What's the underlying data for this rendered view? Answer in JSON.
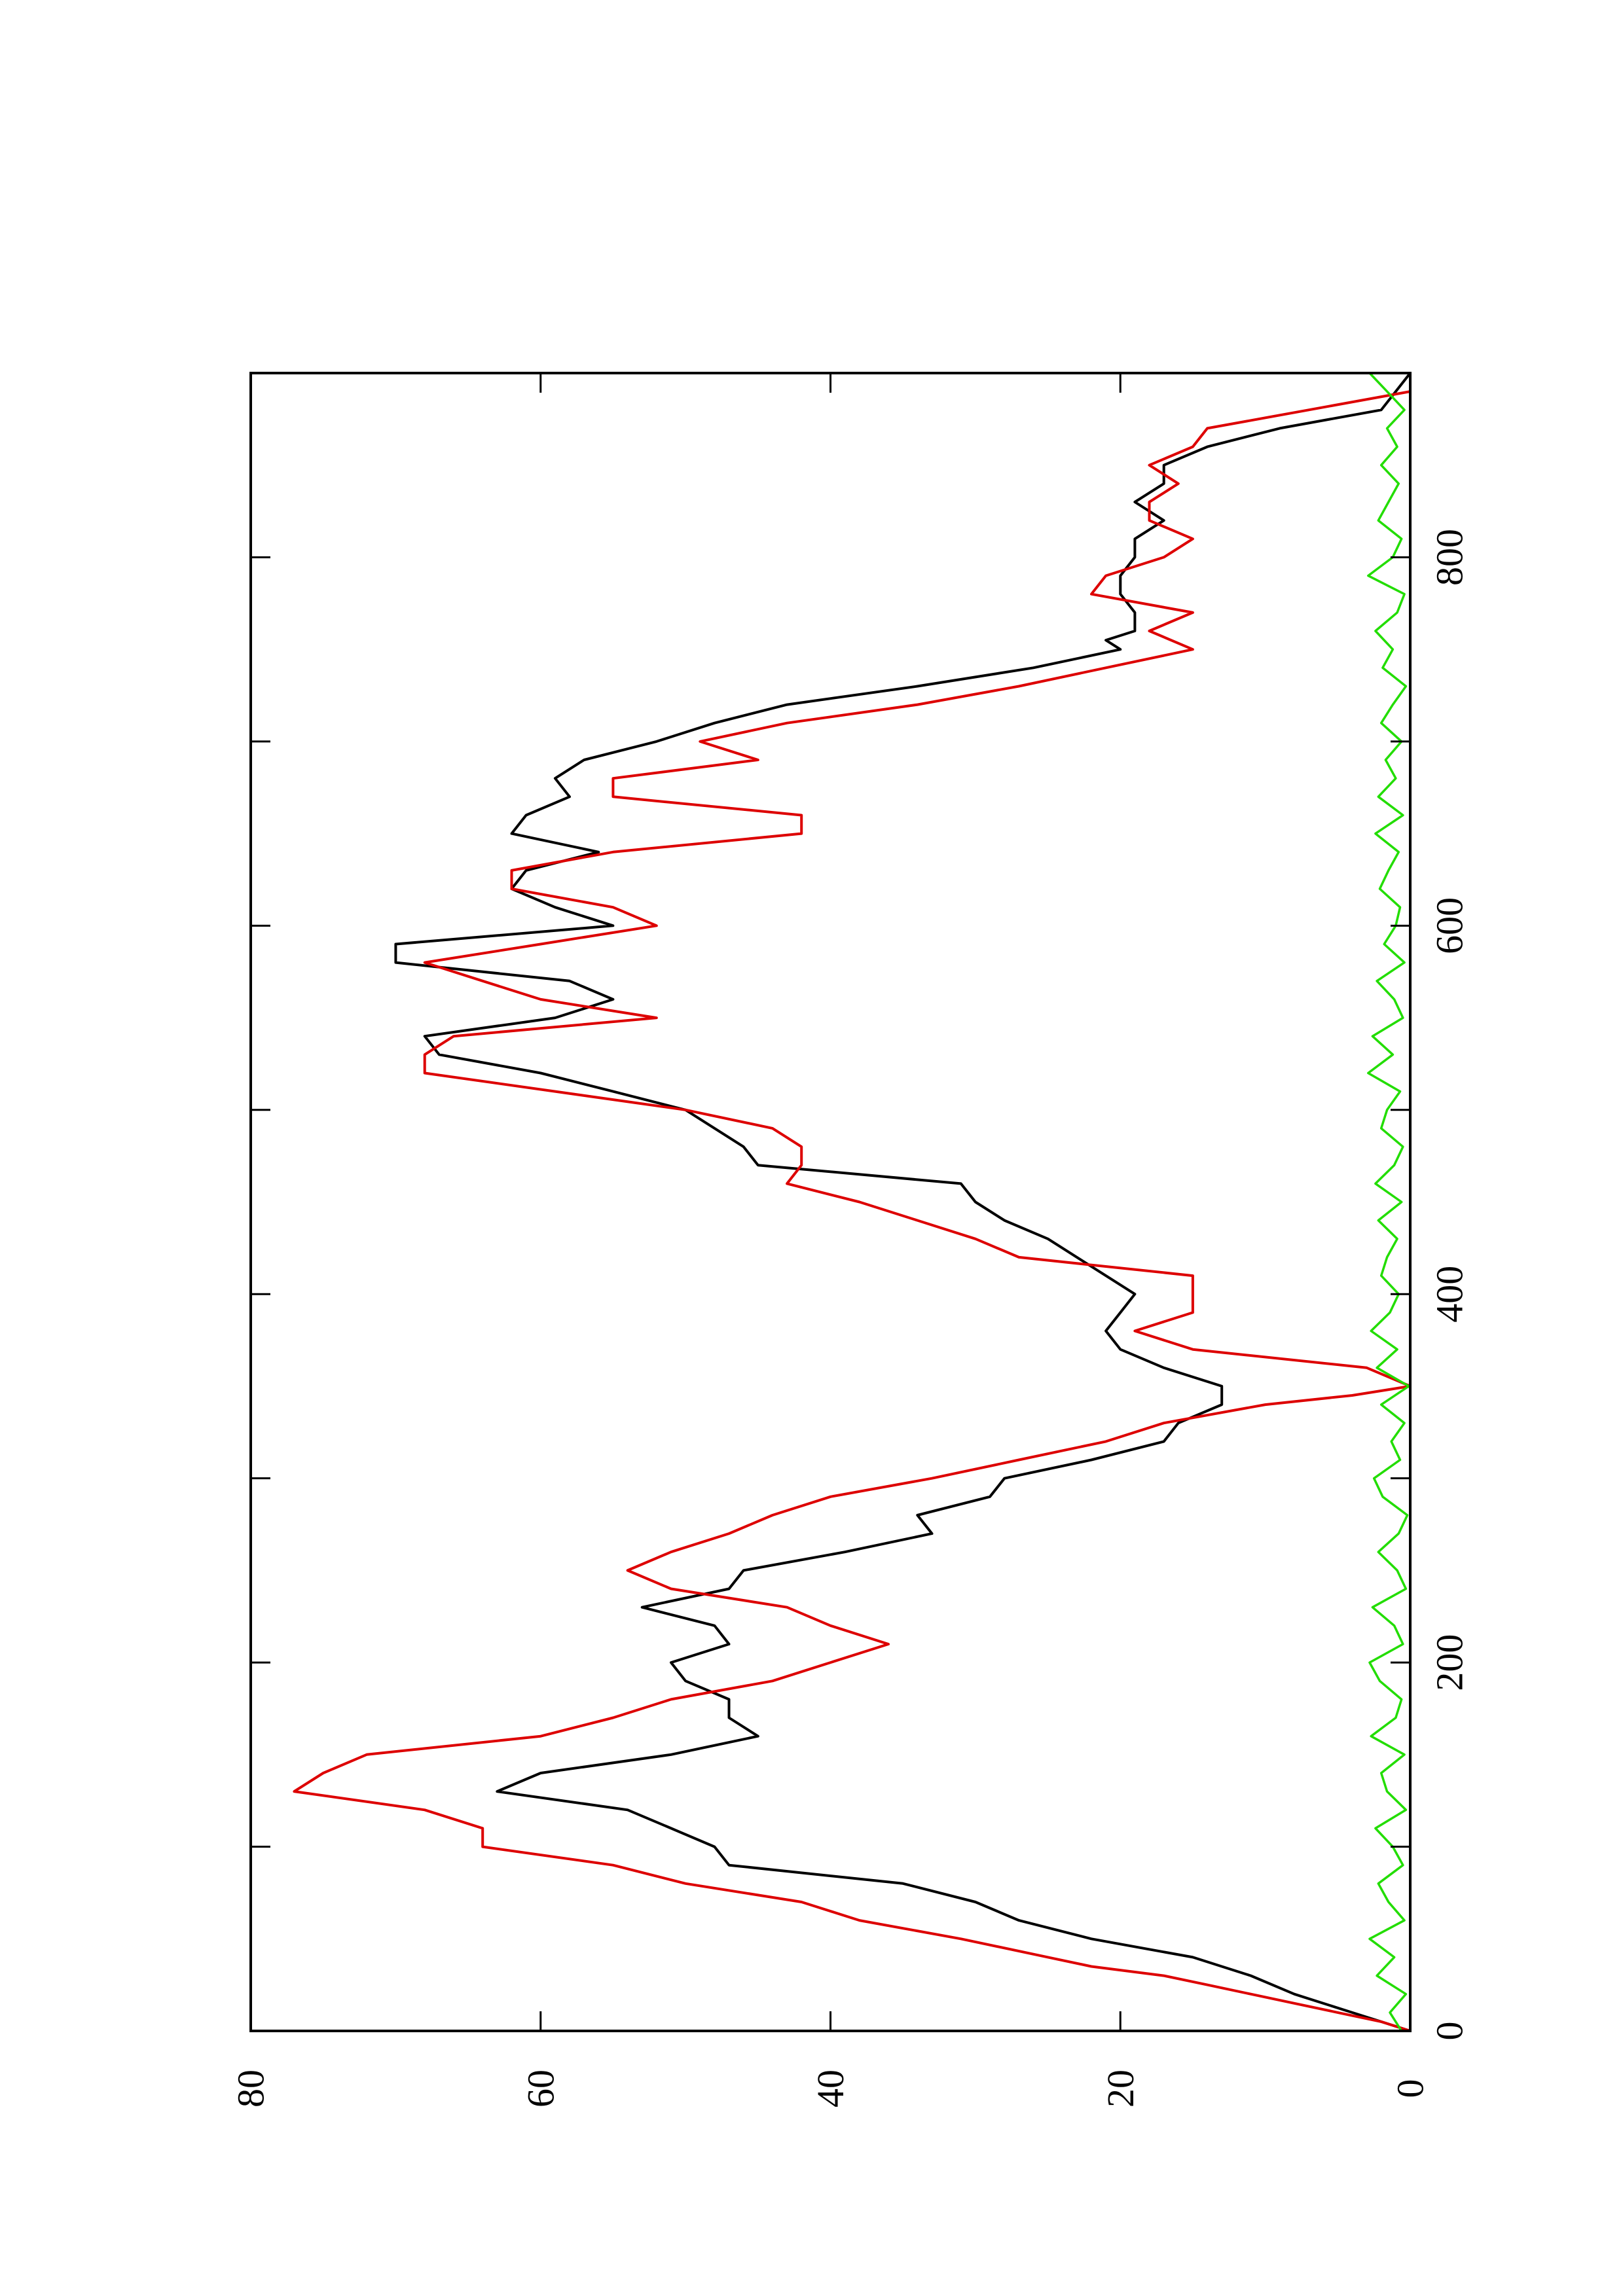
{
  "chart_data": {
    "type": "line",
    "title": "",
    "xlabel": "",
    "ylabel": "",
    "orientation": "rotated 90 degrees counter-clockwise (page in landscape)",
    "xlim": [
      0,
      900
    ],
    "ylim": [
      0,
      80
    ],
    "x_ticks": [
      "0",
      "200",
      "400",
      "600",
      "800"
    ],
    "y_ticks": [
      "0",
      "20",
      "40",
      "60",
      "80"
    ],
    "x_minor_ticks": [
      100,
      300,
      500,
      700
    ],
    "grid": false,
    "legend": "none",
    "series": [
      {
        "color": "#000000",
        "style": "solid",
        "x": [
          0,
          5,
          10,
          20,
          30,
          40,
          50,
          60,
          70,
          80,
          90,
          100,
          110,
          120,
          130,
          140,
          150,
          160,
          170,
          180,
          190,
          200,
          210,
          220,
          230,
          240,
          250,
          260,
          270,
          280,
          290,
          300,
          310,
          320,
          330,
          340,
          350,
          360,
          370,
          380,
          390,
          400,
          410,
          420,
          430,
          440,
          450,
          460,
          470,
          480,
          490,
          500,
          510,
          520,
          530,
          540,
          550,
          560,
          570,
          580,
          590,
          600,
          610,
          620,
          630,
          640,
          650,
          660,
          670,
          680,
          690,
          700,
          710,
          720,
          730,
          740,
          750,
          755,
          760,
          770,
          780,
          790,
          800,
          810,
          820,
          830,
          840,
          850,
          860,
          870,
          880,
          890,
          900
        ],
        "values": [
          0,
          2,
          4,
          8,
          11,
          15,
          22,
          27,
          30,
          35,
          47,
          48,
          51,
          54,
          63,
          60,
          51,
          45,
          47,
          47,
          50,
          51,
          47,
          48,
          53,
          47,
          46,
          39,
          33,
          34,
          29,
          28,
          22,
          17,
          16,
          13,
          13,
          17,
          20,
          21,
          20,
          19,
          21,
          23,
          25,
          28,
          30,
          31,
          45,
          46,
          48,
          50,
          55,
          60,
          67,
          68,
          59,
          55,
          58,
          70,
          70,
          55,
          59,
          62,
          61,
          56,
          62,
          61,
          58,
          59,
          57,
          52,
          48,
          43,
          34,
          26,
          20,
          21,
          19,
          19,
          20,
          20,
          19,
          19,
          17,
          19,
          17,
          17,
          14,
          9,
          2,
          1,
          0
        ]
      },
      {
        "color": "#dd0000",
        "style": "solid",
        "x": [
          0,
          5,
          10,
          15,
          20,
          25,
          30,
          35,
          40,
          50,
          60,
          70,
          80,
          90,
          100,
          110,
          120,
          130,
          140,
          150,
          160,
          170,
          180,
          190,
          200,
          210,
          220,
          230,
          240,
          250,
          260,
          270,
          280,
          290,
          300,
          310,
          320,
          330,
          340,
          345,
          350,
          360,
          370,
          380,
          390,
          400,
          410,
          420,
          430,
          440,
          450,
          460,
          470,
          480,
          490,
          500,
          510,
          520,
          530,
          540,
          550,
          560,
          570,
          580,
          590,
          600,
          610,
          620,
          630,
          640,
          650,
          660,
          670,
          680,
          690,
          700,
          710,
          720,
          730,
          740,
          750,
          760,
          770,
          780,
          790,
          800,
          810,
          820,
          830,
          840,
          850,
          860,
          870,
          880,
          890,
          900
        ],
        "values": [
          0,
          2,
          5,
          8,
          11,
          14,
          17,
          22,
          25,
          31,
          38,
          42,
          50,
          55,
          64,
          64,
          68,
          77,
          75,
          72,
          60,
          55,
          51,
          44,
          40,
          36,
          40,
          43,
          51,
          54,
          51,
          47,
          44,
          40,
          33,
          27,
          21,
          17,
          10,
          4,
          0,
          3,
          15,
          19,
          15,
          15,
          15,
          27,
          30,
          34,
          38,
          43,
          42,
          42,
          44,
          50,
          59,
          68,
          68,
          66,
          52,
          60,
          64,
          68,
          60,
          52,
          55,
          62,
          62,
          55,
          42,
          42,
          55,
          55,
          45,
          49,
          43,
          34,
          27,
          21,
          15,
          18,
          15,
          22,
          21,
          17,
          15,
          18,
          18,
          16,
          18,
          15,
          14,
          7,
          0,
          0
        ]
      },
      {
        "color": "#22dd00",
        "style": "solid",
        "x": [
          0,
          10,
          20,
          30,
          40,
          50,
          60,
          70,
          80,
          90,
          100,
          110,
          120,
          130,
          140,
          150,
          160,
          170,
          180,
          190,
          200,
          210,
          220,
          230,
          240,
          250,
          260,
          270,
          280,
          290,
          300,
          310,
          320,
          330,
          340,
          350,
          360,
          370,
          380,
          390,
          400,
          410,
          420,
          430,
          440,
          450,
          460,
          470,
          480,
          490,
          500,
          510,
          520,
          530,
          540,
          550,
          560,
          570,
          580,
          590,
          600,
          610,
          620,
          630,
          640,
          650,
          660,
          670,
          680,
          690,
          700,
          710,
          720,
          730,
          740,
          750,
          760,
          770,
          780,
          790,
          800,
          810,
          820,
          830,
          840,
          850,
          860,
          870,
          880,
          890,
          900
        ],
        "values": [
          0.6,
          1.4,
          0.3,
          2.3,
          1.1,
          2.8,
          0.4,
          1.5,
          2.2,
          0.5,
          1.2,
          2.4,
          0.3,
          1.6,
          2.0,
          0.4,
          2.7,
          1.0,
          0.6,
          2.1,
          2.8,
          0.5,
          1.1,
          2.6,
          0.3,
          0.9,
          2.2,
          0.8,
          0.2,
          1.9,
          2.5,
          0.7,
          1.3,
          0.4,
          2.0,
          0.1,
          2.3,
          0.9,
          2.7,
          1.4,
          0.8,
          2.0,
          1.6,
          0.9,
          2.2,
          0.6,
          2.4,
          1.1,
          0.5,
          2.0,
          1.6,
          0.7,
          2.9,
          1.2,
          2.6,
          0.5,
          1.1,
          2.3,
          0.4,
          1.8,
          1.0,
          0.7,
          2.1,
          1.5,
          0.8,
          2.4,
          0.5,
          2.2,
          1.0,
          1.7,
          0.6,
          2.0,
          1.2,
          0.3,
          1.9,
          1.2,
          2.4,
          0.9,
          0.4,
          2.9,
          1.2,
          0.6,
          2.2,
          1.5,
          0.8,
          2.0,
          0.9,
          1.6,
          0.4,
          1.6,
          2.8
        ]
      }
    ]
  }
}
